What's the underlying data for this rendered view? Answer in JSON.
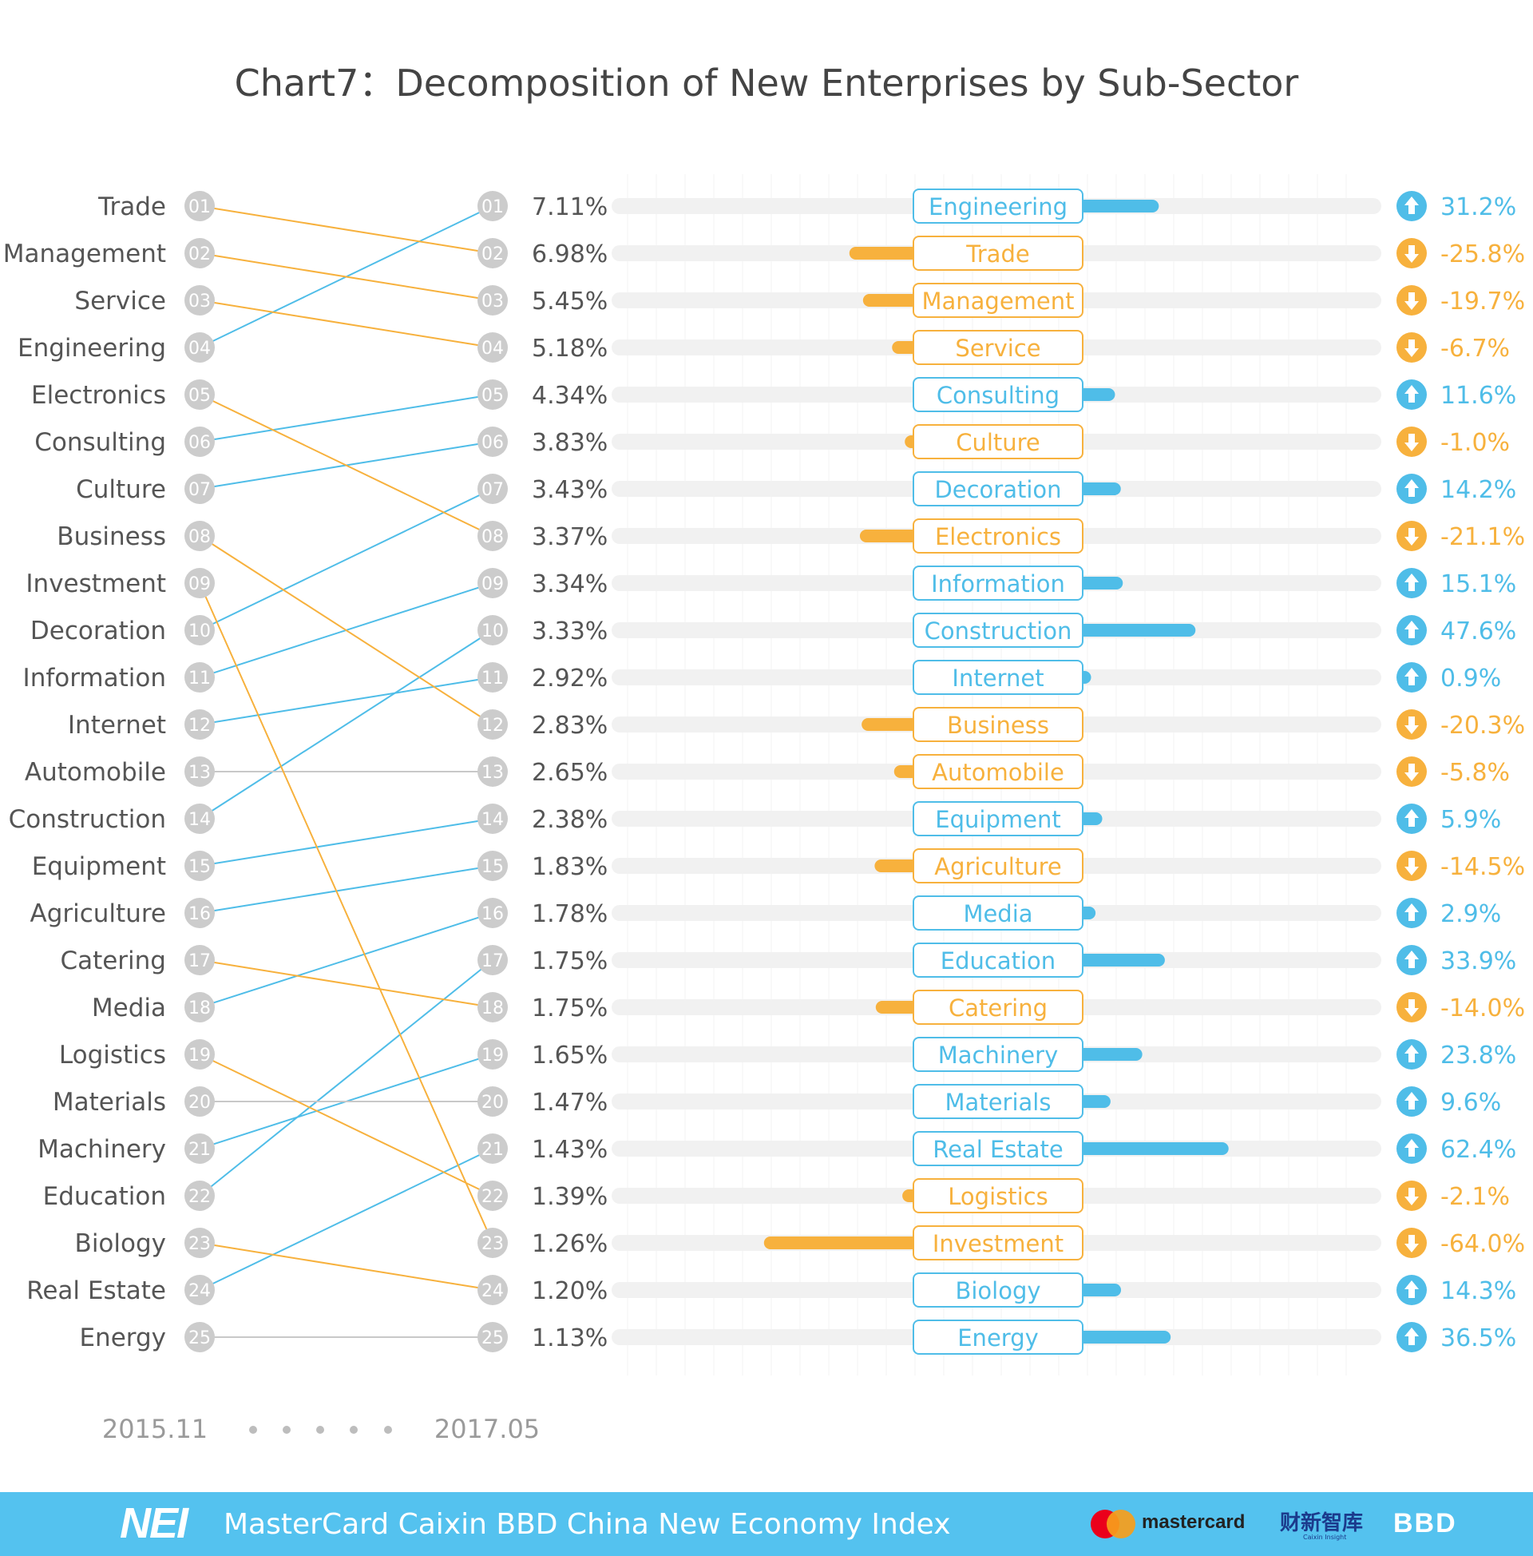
{
  "chart_data": {
    "type": "slope-bar",
    "title": "Chart7：Decomposition of New Enterprises by Sub-Sector",
    "start_label": "2015.11",
    "end_label": "2017.05",
    "left_ranking": [
      "Trade",
      "Management",
      "Service",
      "Engineering",
      "Electronics",
      "Consulting",
      "Culture",
      "Business",
      "Investment",
      "Decoration",
      "Information",
      "Internet",
      "Automobile",
      "Construction",
      "Equipment",
      "Agriculture",
      "Catering",
      "Media",
      "Logistics",
      "Materials",
      "Machinery",
      "Education",
      "Biology",
      "Real Estate",
      "Energy"
    ],
    "right_ranking": [
      {
        "rank": "01",
        "share": "7.11%",
        "sector": "Engineering",
        "change": 31.2,
        "change_label": "31.2%"
      },
      {
        "rank": "02",
        "share": "6.98%",
        "sector": "Trade",
        "change": -25.8,
        "change_label": "-25.8%"
      },
      {
        "rank": "03",
        "share": "5.45%",
        "sector": "Management",
        "change": -19.7,
        "change_label": "-19.7%"
      },
      {
        "rank": "04",
        "share": "5.18%",
        "sector": "Service",
        "change": -6.7,
        "change_label": "-6.7%"
      },
      {
        "rank": "05",
        "share": "4.34%",
        "sector": "Consulting",
        "change": 11.6,
        "change_label": "11.6%"
      },
      {
        "rank": "06",
        "share": "3.83%",
        "sector": "Culture",
        "change": -1.0,
        "change_label": "-1.0%"
      },
      {
        "rank": "07",
        "share": "3.43%",
        "sector": "Decoration",
        "change": 14.2,
        "change_label": "14.2%"
      },
      {
        "rank": "08",
        "share": "3.37%",
        "sector": "Electronics",
        "change": -21.1,
        "change_label": "-21.1%"
      },
      {
        "rank": "09",
        "share": "3.34%",
        "sector": "Information",
        "change": 15.1,
        "change_label": "15.1%"
      },
      {
        "rank": "10",
        "share": "3.33%",
        "sector": "Construction",
        "change": 47.6,
        "change_label": "47.6%"
      },
      {
        "rank": "11",
        "share": "2.92%",
        "sector": "Internet",
        "change": 0.9,
        "change_label": "0.9%"
      },
      {
        "rank": "12",
        "share": "2.83%",
        "sector": "Business",
        "change": -20.3,
        "change_label": "-20.3%"
      },
      {
        "rank": "13",
        "share": "2.65%",
        "sector": "Automobile",
        "change": -5.8,
        "change_label": "-5.8%"
      },
      {
        "rank": "14",
        "share": "2.38%",
        "sector": "Equipment",
        "change": 5.9,
        "change_label": "5.9%"
      },
      {
        "rank": "15",
        "share": "1.83%",
        "sector": "Agriculture",
        "change": -14.5,
        "change_label": "-14.5%"
      },
      {
        "rank": "16",
        "share": "1.78%",
        "sector": "Media",
        "change": 2.9,
        "change_label": "2.9%"
      },
      {
        "rank": "17",
        "share": "1.75%",
        "sector": "Education",
        "change": 33.9,
        "change_label": "33.9%"
      },
      {
        "rank": "18",
        "share": "1.75%",
        "sector": "Catering",
        "change": -14.0,
        "change_label": "-14.0%"
      },
      {
        "rank": "19",
        "share": "1.65%",
        "sector": "Machinery",
        "change": 23.8,
        "change_label": "23.8%"
      },
      {
        "rank": "20",
        "share": "1.47%",
        "sector": "Materials",
        "change": 9.6,
        "change_label": "9.6%"
      },
      {
        "rank": "21",
        "share": "1.43%",
        "sector": "Real Estate",
        "change": 62.4,
        "change_label": "62.4%"
      },
      {
        "rank": "22",
        "share": "1.39%",
        "sector": "Logistics",
        "change": -2.1,
        "change_label": "-2.1%"
      },
      {
        "rank": "23",
        "share": "1.26%",
        "sector": "Investment",
        "change": -64.0,
        "change_label": "-64.0%"
      },
      {
        "rank": "24",
        "share": "1.20%",
        "sector": "Biology",
        "change": 14.3,
        "change_label": "14.3%"
      },
      {
        "rank": "25",
        "share": "1.13%",
        "sector": "Energy",
        "change": 36.5,
        "change_label": "36.5%"
      }
    ],
    "change_axis_range": [
      -100,
      100
    ]
  },
  "colors": {
    "up": "#4fbde8",
    "down": "#f7b13d",
    "same": "#c8c8c8",
    "badge": "#cccccc",
    "track": "#f1f1f1",
    "text": "#555555",
    "footer_bg": "#54c2ef"
  },
  "footer": {
    "logo_text": "NEI",
    "title": "MasterCard Caixin BBD China New Economy Index",
    "mastercard": "mastercard",
    "caixin": "财新智库",
    "caixin_sub": "Caixin Insight",
    "bbd": "BBD"
  }
}
